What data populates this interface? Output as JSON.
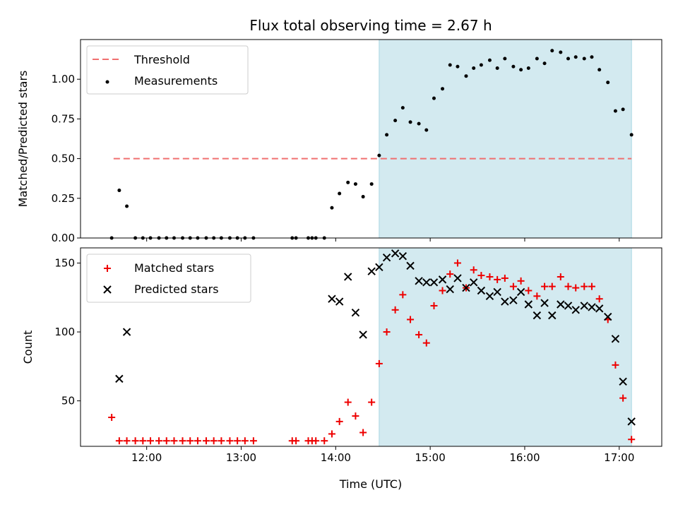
{
  "title": "Flux total observing time = 2.67 h",
  "colors": {
    "threshold": "#f07070",
    "measurements": "#000000",
    "matched": "#ee0000",
    "predicted": "#000000",
    "span_fill": "#d3eaf0",
    "span_edge": "#a9d6e3"
  },
  "chart_data": [
    {
      "type": "scatter",
      "xlabel": "",
      "ylabel": "Matched/Predicted stars",
      "xlim": [
        11.3,
        17.45
      ],
      "ylim": [
        0.0,
        1.25
      ],
      "yticks": [
        0.0,
        0.25,
        0.5,
        0.75,
        1.0
      ],
      "ytick_labels": [
        "0.00",
        "0.25",
        "0.50",
        "0.75",
        "1.00"
      ],
      "grid": false,
      "legend_position": "top-left",
      "span": [
        14.46,
        17.13
      ],
      "threshold": {
        "name": "Threshold",
        "value": 0.5,
        "x_range": [
          11.65,
          17.13
        ]
      },
      "series": [
        {
          "name": "Measurements",
          "x": [
            11.63,
            11.71,
            11.79,
            11.88,
            11.96,
            12.04,
            12.13,
            12.21,
            12.29,
            12.38,
            12.46,
            12.54,
            12.63,
            12.71,
            12.79,
            12.88,
            12.96,
            13.04,
            13.13,
            13.54,
            13.58,
            13.71,
            13.75,
            13.79,
            13.88,
            13.96,
            14.04,
            14.13,
            14.21,
            14.29,
            14.38,
            14.46,
            14.54,
            14.63,
            14.71,
            14.79,
            14.88,
            14.96,
            15.04,
            15.13,
            15.21,
            15.29,
            15.38,
            15.46,
            15.54,
            15.63,
            15.71,
            15.79,
            15.88,
            15.96,
            16.04,
            16.13,
            16.21,
            16.29,
            16.38,
            16.46,
            16.54,
            16.63,
            16.71,
            16.79,
            16.88,
            16.96,
            17.04,
            17.13
          ],
          "y": [
            0.0,
            0.3,
            0.2,
            0.0,
            0.0,
            0.0,
            0.0,
            0.0,
            0.0,
            0.0,
            0.0,
            0.0,
            0.0,
            0.0,
            0.0,
            0.0,
            0.0,
            0.0,
            0.0,
            0.0,
            0.0,
            0.0,
            0.0,
            0.0,
            0.0,
            0.19,
            0.28,
            0.35,
            0.34,
            0.26,
            0.34,
            0.52,
            0.65,
            0.74,
            0.82,
            0.73,
            0.72,
            0.68,
            0.88,
            0.94,
            1.09,
            1.08,
            1.02,
            1.07,
            1.09,
            1.12,
            1.07,
            1.13,
            1.08,
            1.06,
            1.07,
            1.13,
            1.1,
            1.18,
            1.17,
            1.13,
            1.14,
            1.13,
            1.14,
            1.06,
            0.98,
            0.8,
            0.81,
            0.65
          ]
        }
      ]
    },
    {
      "type": "scatter",
      "xlabel": "Time (UTC)",
      "ylabel": "Count",
      "xlim": [
        11.3,
        17.45
      ],
      "ylim": [
        17.0,
        161.0
      ],
      "xticks": [
        12,
        13,
        14,
        15,
        16,
        17
      ],
      "xtick_labels": [
        "12:00",
        "13:00",
        "14:00",
        "15:00",
        "16:00",
        "17:00"
      ],
      "yticks": [
        50,
        100,
        150
      ],
      "ytick_labels": [
        "50",
        "100",
        "150"
      ],
      "grid": false,
      "legend_position": "top-left",
      "span": [
        14.46,
        17.13
      ],
      "series": [
        {
          "name": "Matched stars",
          "x": [
            11.63,
            11.71,
            11.79,
            11.88,
            11.96,
            12.04,
            12.13,
            12.21,
            12.29,
            12.38,
            12.46,
            12.54,
            12.63,
            12.71,
            12.79,
            12.88,
            12.96,
            13.04,
            13.13,
            13.54,
            13.58,
            13.71,
            13.75,
            13.79,
            13.88,
            13.96,
            14.04,
            14.13,
            14.21,
            14.29,
            14.38,
            14.46,
            14.54,
            14.63,
            14.71,
            14.79,
            14.88,
            14.96,
            15.04,
            15.13,
            15.21,
            15.29,
            15.38,
            15.46,
            15.54,
            15.63,
            15.71,
            15.79,
            15.88,
            15.96,
            16.04,
            16.13,
            16.21,
            16.29,
            16.38,
            16.46,
            16.54,
            16.63,
            16.71,
            16.79,
            16.88,
            16.96,
            17.04,
            17.13
          ],
          "y": [
            38,
            21,
            21,
            21,
            21,
            21,
            21,
            21,
            21,
            21,
            21,
            21,
            21,
            21,
            21,
            21,
            21,
            21,
            21,
            21,
            21,
            21,
            21,
            21,
            21,
            26,
            35,
            49,
            39,
            27,
            49,
            77,
            100,
            116,
            127,
            109,
            98,
            92,
            119,
            130,
            142,
            150,
            132,
            145,
            141,
            140,
            138,
            139,
            133,
            137,
            130,
            126,
            133,
            133,
            140,
            133,
            132,
            133,
            133,
            124,
            109,
            76,
            52,
            22
          ]
        },
        {
          "name": "Predicted stars",
          "x": [
            11.71,
            11.79,
            13.96,
            14.04,
            14.13,
            14.21,
            14.29,
            14.38,
            14.46,
            14.54,
            14.63,
            14.71,
            14.79,
            14.88,
            14.96,
            15.04,
            15.13,
            15.21,
            15.29,
            15.38,
            15.46,
            15.54,
            15.63,
            15.71,
            15.79,
            15.88,
            15.96,
            16.04,
            16.13,
            16.21,
            16.29,
            16.38,
            16.46,
            16.54,
            16.63,
            16.71,
            16.79,
            16.88,
            16.96,
            17.04,
            17.13
          ],
          "y": [
            66,
            100,
            124,
            122,
            140,
            114,
            98,
            144,
            147,
            154,
            157,
            155,
            148,
            137,
            136,
            136,
            138,
            131,
            139,
            132,
            136,
            130,
            126,
            129,
            122,
            123,
            129,
            120,
            112,
            121,
            112,
            120,
            119,
            116,
            119,
            118,
            117,
            111,
            95,
            64,
            35
          ]
        }
      ]
    }
  ]
}
